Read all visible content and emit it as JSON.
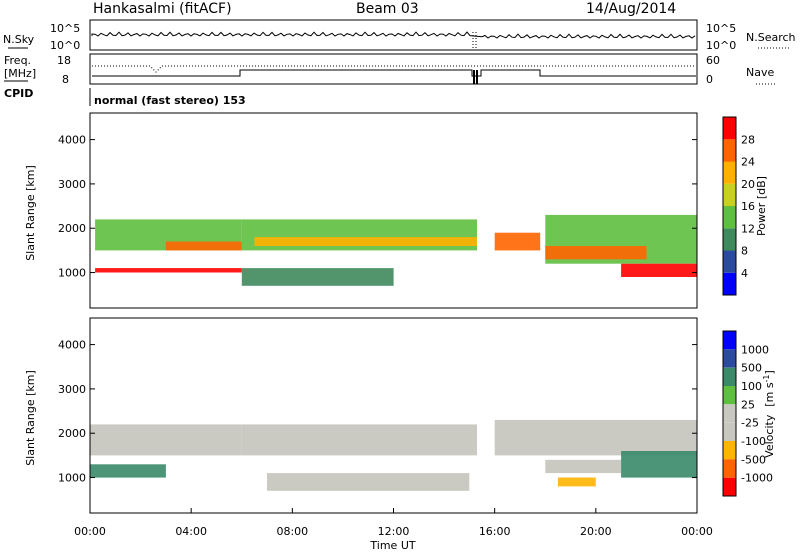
{
  "header": {
    "title": "Hankasalmi (fitACF)",
    "beam": "Beam 03",
    "date": "14/Aug/2014"
  },
  "noise_panel": {
    "left_label": "N.Sky",
    "right_label": "N.Search",
    "tick_top": "10^5",
    "tick_bottom": "10^0"
  },
  "freq_panel": {
    "left_label_1": "Freq.",
    "left_label_2": "[MHz]",
    "right_label": "Nave",
    "left_ticks": [
      "18",
      "8"
    ],
    "right_ticks": [
      "60",
      "0"
    ]
  },
  "cpid": {
    "label": "CPID",
    "mode": "normal (fast stereo) 153"
  },
  "colors": {
    "power": [
      "#0000ff",
      "#2c4ba0",
      "#3f8a5c",
      "#5fbf3f",
      "#c8d020",
      "#ffb000",
      "#ff6400",
      "#ff0000"
    ],
    "velocity": [
      "#ff0000",
      "#ff6400",
      "#ffb400",
      "#c8c8c0",
      "#c8c8c0",
      "#5fbf3f",
      "#3a8a6a",
      "#2c4ba0",
      "#0000ff"
    ],
    "echo_gray": "#c4c4bc"
  },
  "chart_data": [
    {
      "type": "heatmap",
      "name": "power",
      "xlabel": "",
      "ylabel": "Slant Range [km]",
      "ylim": [
        200,
        4600
      ],
      "y_ticks": [
        "1000",
        "2000",
        "3000",
        "4000"
      ],
      "colorbar_label": "Power [dB]",
      "colorbar_ticks": [
        "4",
        "8",
        "12",
        "16",
        "20",
        "24",
        "28"
      ],
      "colorbar_range": [
        0,
        32
      ],
      "bands": [
        {
          "t0": 0.2,
          "t1": 6.0,
          "r0": 1000,
          "r1": 1100,
          "value": 28
        },
        {
          "t0": 0.2,
          "t1": 6.0,
          "r0": 1500,
          "r1": 2200,
          "value": 12
        },
        {
          "t0": 3.0,
          "t1": 6.0,
          "r0": 1500,
          "r1": 1700,
          "value": 24
        },
        {
          "t0": 6.0,
          "t1": 15.3,
          "r0": 1500,
          "r1": 2200,
          "value": 14
        },
        {
          "t0": 6.5,
          "t1": 15.3,
          "r0": 1600,
          "r1": 1800,
          "value": 22
        },
        {
          "t0": 6.0,
          "t1": 12.0,
          "r0": 700,
          "r1": 1100,
          "value": 10
        },
        {
          "t0": 16.0,
          "t1": 17.8,
          "r0": 1500,
          "r1": 1900,
          "value": 26
        },
        {
          "t0": 18.0,
          "t1": 24.0,
          "r0": 1200,
          "r1": 2300,
          "value": 12
        },
        {
          "t0": 18.0,
          "t1": 22.0,
          "r0": 1300,
          "r1": 1600,
          "value": 24
        },
        {
          "t0": 21.0,
          "t1": 24.0,
          "r0": 900,
          "r1": 1200,
          "value": 28
        }
      ]
    },
    {
      "type": "heatmap",
      "name": "velocity",
      "xlabel": "Time UT",
      "ylabel": "Slant Range [km]",
      "ylim": [
        200,
        4600
      ],
      "y_ticks": [
        "1000",
        "2000",
        "3000",
        "4000"
      ],
      "x_ticks": [
        "00:00",
        "04:00",
        "08:00",
        "12:00",
        "16:00",
        "20:00",
        "00:00"
      ],
      "xlim": [
        0,
        24
      ],
      "colorbar_label_main": "Velocity",
      "colorbar_label_units": "[m s",
      "colorbar_label_exp": "-1",
      "colorbar_label_close": "]",
      "colorbar_ticks": [
        "1000",
        "500",
        "100",
        "25",
        "-25",
        "-100",
        "-500",
        "-1000"
      ],
      "bands": [
        {
          "t0": 0.0,
          "t1": 3.0,
          "r0": 1000,
          "r1": 1300,
          "value": 150
        },
        {
          "t0": 0.0,
          "t1": 6.0,
          "r0": 1500,
          "r1": 2200,
          "value": 0
        },
        {
          "t0": 6.0,
          "t1": 15.3,
          "r0": 1500,
          "r1": 2200,
          "value": 0
        },
        {
          "t0": 7.0,
          "t1": 15.0,
          "r0": 700,
          "r1": 1100,
          "value": 0
        },
        {
          "t0": 16.0,
          "t1": 24.0,
          "r0": 1500,
          "r1": 2300,
          "value": 0
        },
        {
          "t0": 18.0,
          "t1": 21.0,
          "r0": 1100,
          "r1": 1400,
          "value": 0
        },
        {
          "t0": 18.5,
          "t1": 20.0,
          "r0": 800,
          "r1": 1000,
          "value": -200
        },
        {
          "t0": 21.0,
          "t1": 24.0,
          "r0": 1000,
          "r1": 1600,
          "value": 300
        }
      ]
    }
  ]
}
